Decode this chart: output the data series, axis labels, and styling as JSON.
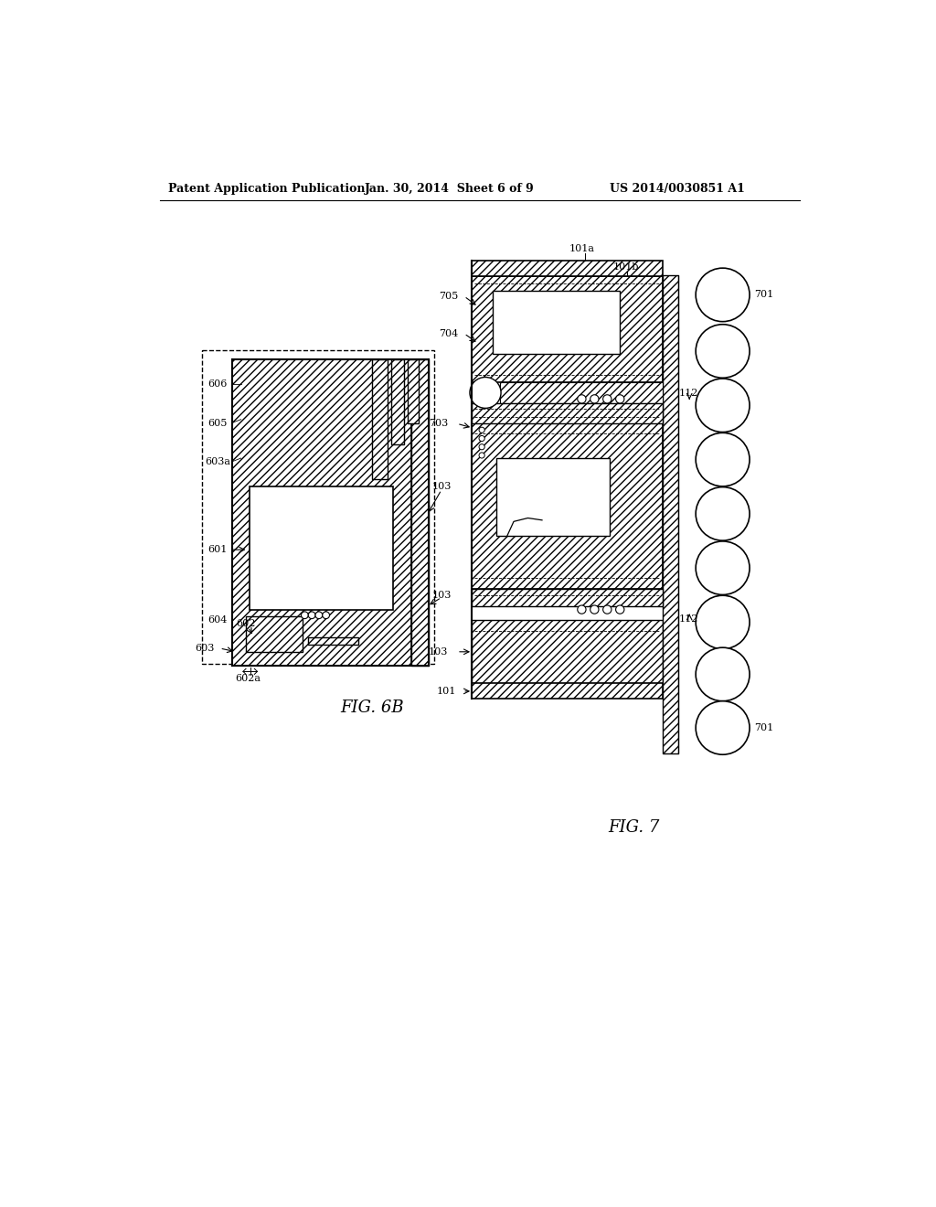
{
  "bg_color": "#ffffff",
  "header_left": "Patent Application Publication",
  "header_center": "Jan. 30, 2014  Sheet 6 of 9",
  "header_right": "US 2014/0030851 A1",
  "fig6b_label": "FIG. 6B",
  "fig7_label": "FIG. 7",
  "line_color": "#000000"
}
